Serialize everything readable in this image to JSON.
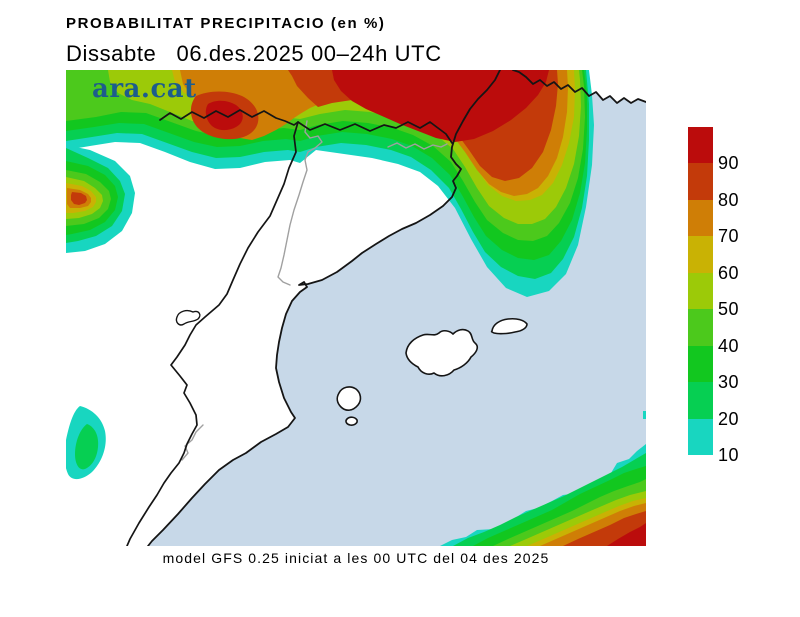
{
  "header": {
    "title": "PROBABILITAT PRECIPITACIO (en %)",
    "subtitle": "Dissabte   06.des.2025 00–24h UTC"
  },
  "logo": {
    "text": "ara.cat",
    "color": "#1d5c8c"
  },
  "footer": {
    "text": "model GFS 0.25 iniciat a les 00 UTC del 04 des 2025"
  },
  "map": {
    "sea_color": "#c7d8e8",
    "land_color": "#ffffff",
    "coast_color": "#151515",
    "region_border_color": "#a0a0a0",
    "palette": {
      "p10": "#18d6c0",
      "p20": "#06cf52",
      "p30": "#12c71f",
      "p40": "#4cc91c",
      "p50": "#9cca08",
      "p60": "#c9b204",
      "p70": "#cf7e06",
      "p80": "#c33a0a",
      "p90": "#bb0c0c"
    }
  },
  "colorbar": {
    "unit": "%",
    "segments": [
      {
        "range": "90-100",
        "color": "#bb0c0c"
      },
      {
        "range": "80-90",
        "color": "#c33a0a"
      },
      {
        "range": "70-80",
        "color": "#cf7e06"
      },
      {
        "range": "60-70",
        "color": "#c9b204"
      },
      {
        "range": "50-60",
        "color": "#9cca08"
      },
      {
        "range": "40-50",
        "color": "#4cc91c"
      },
      {
        "range": "30-40",
        "color": "#12c71f"
      },
      {
        "range": "20-30",
        "color": "#06cf52"
      },
      {
        "range": "10-20",
        "color": "#18d6c0"
      }
    ],
    "tick_labels": [
      "90",
      "80",
      "70",
      "60",
      "50",
      "40",
      "30",
      "20",
      "10"
    ]
  }
}
